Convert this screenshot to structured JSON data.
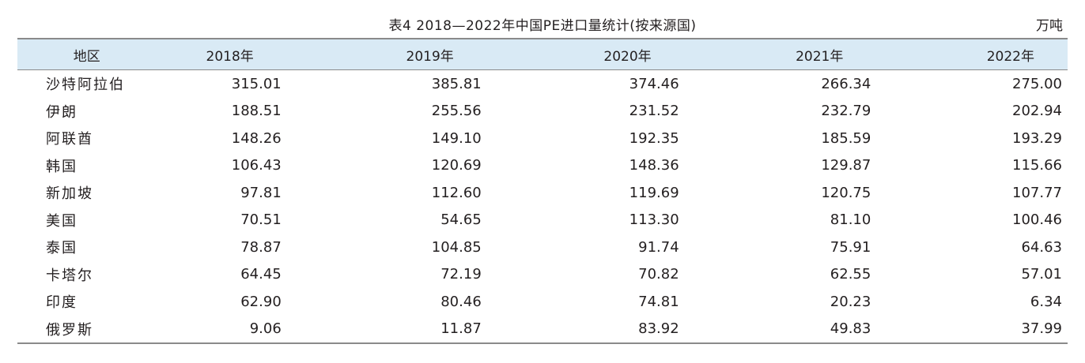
{
  "caption": "表4  2018—2022年中国PE进口量统计(按来源国)",
  "unit": "万吨",
  "table": {
    "headers": [
      "地区",
      "2018年",
      "2019年",
      "2020年",
      "2021年",
      "2022年"
    ],
    "rows": [
      [
        "沙特阿拉伯",
        "315.01",
        "385.81",
        "374.46",
        "266.34",
        "275.00"
      ],
      [
        "伊朗",
        "188.51",
        "255.56",
        "231.52",
        "232.79",
        "202.94"
      ],
      [
        "阿联酋",
        "148.26",
        "149.10",
        "192.35",
        "185.59",
        "193.29"
      ],
      [
        "韩国",
        "106.43",
        "120.69",
        "148.36",
        "129.87",
        "115.66"
      ],
      [
        "新加坡",
        "97.81",
        "112.60",
        "119.69",
        "120.75",
        "107.77"
      ],
      [
        "美国",
        "70.51",
        "54.65",
        "113.30",
        "81.10",
        "100.46"
      ],
      [
        "泰国",
        "78.87",
        "104.85",
        "91.74",
        "75.91",
        "64.63"
      ],
      [
        "卡塔尔",
        "64.45",
        "72.19",
        "70.82",
        "62.55",
        "57.01"
      ],
      [
        "印度",
        "62.90",
        "80.46",
        "74.81",
        "20.23",
        "6.34"
      ],
      [
        "俄罗斯",
        "9.06",
        "11.87",
        "83.92",
        "49.83",
        "37.99"
      ]
    ]
  },
  "colors": {
    "header_background": "#d9eaf5",
    "rule": "#8a8a8a",
    "text": "#231f20"
  }
}
